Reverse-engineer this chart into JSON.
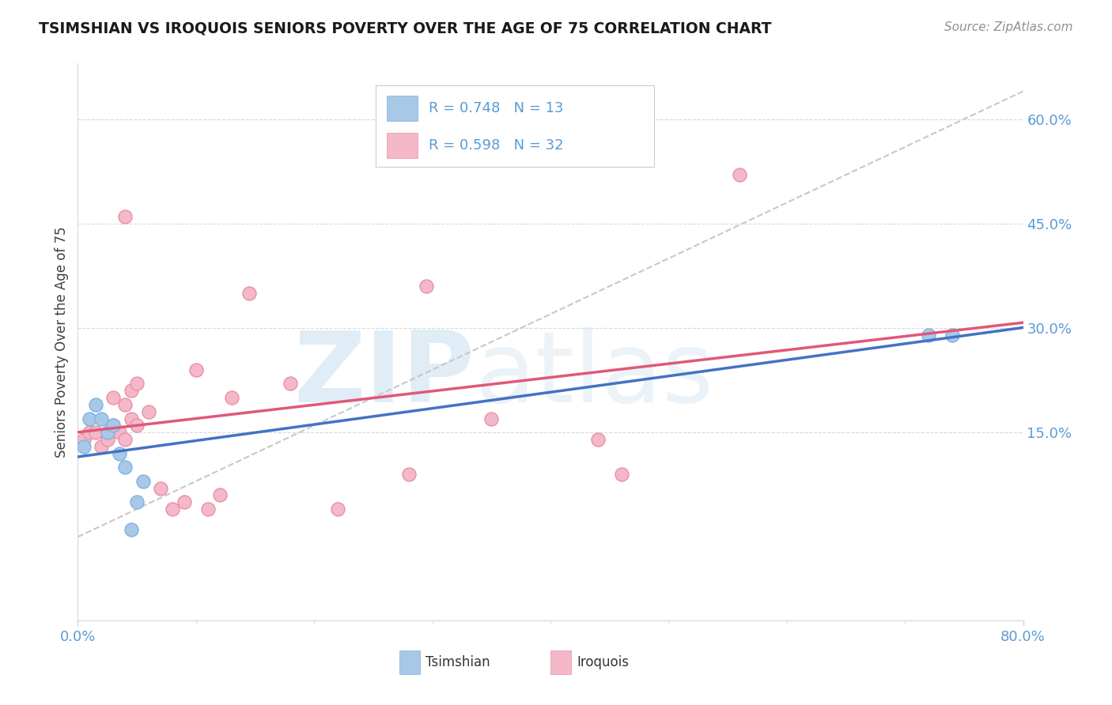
{
  "title": "TSIMSHIAN VS IROQUOIS SENIORS POVERTY OVER THE AGE OF 75 CORRELATION CHART",
  "source": "Source: ZipAtlas.com",
  "ylabel": "Seniors Poverty Over the Age of 75",
  "xlim": [
    0.0,
    0.8
  ],
  "ylim": [
    -0.12,
    0.68
  ],
  "ytick_positions": [
    0.0,
    0.15,
    0.3,
    0.45,
    0.6
  ],
  "ytick_labels": [
    "",
    "15.0%",
    "30.0%",
    "45.0%",
    "60.0%"
  ],
  "tsimshian_color": "#a8c8e8",
  "tsimshian_edge_color": "#7eb3e0",
  "iroquois_color": "#f4b8c8",
  "iroquois_edge_color": "#e890a8",
  "tsimshian_line_color": "#4472c4",
  "iroquois_line_color": "#e05878",
  "trend_line_color": "#c8c8c8",
  "R_tsimshian": 0.748,
  "N_tsimshian": 13,
  "R_iroquois": 0.598,
  "N_iroquois": 32,
  "tsimshian_x": [
    0.005,
    0.01,
    0.015,
    0.02,
    0.025,
    0.03,
    0.035,
    0.04,
    0.045,
    0.05,
    0.055,
    0.72,
    0.74
  ],
  "tsimshian_y": [
    0.13,
    0.17,
    0.19,
    0.17,
    0.15,
    0.16,
    0.12,
    0.1,
    0.01,
    0.05,
    0.08,
    0.29,
    0.29
  ],
  "iroquois_x": [
    0.005,
    0.01,
    0.015,
    0.02,
    0.025,
    0.03,
    0.03,
    0.035,
    0.04,
    0.04,
    0.04,
    0.045,
    0.045,
    0.05,
    0.05,
    0.06,
    0.07,
    0.08,
    0.09,
    0.1,
    0.11,
    0.12,
    0.13,
    0.145,
    0.18,
    0.22,
    0.28,
    0.295,
    0.35,
    0.44,
    0.46,
    0.56
  ],
  "iroquois_y": [
    0.14,
    0.15,
    0.15,
    0.13,
    0.14,
    0.16,
    0.2,
    0.15,
    0.14,
    0.19,
    0.46,
    0.17,
    0.21,
    0.16,
    0.22,
    0.18,
    0.07,
    0.04,
    0.05,
    0.24,
    0.04,
    0.06,
    0.2,
    0.35,
    0.22,
    0.04,
    0.09,
    0.36,
    0.17,
    0.14,
    0.09,
    0.52
  ],
  "watermark_zip": "ZIP",
  "watermark_atlas": "atlas",
  "background_color": "#ffffff",
  "grid_color": "#d8d8d8",
  "legend_box_color": "#f0f0f0",
  "legend_border_color": "#d0d0d0",
  "tick_color": "#5b9bd5",
  "axis_color": "#404040"
}
